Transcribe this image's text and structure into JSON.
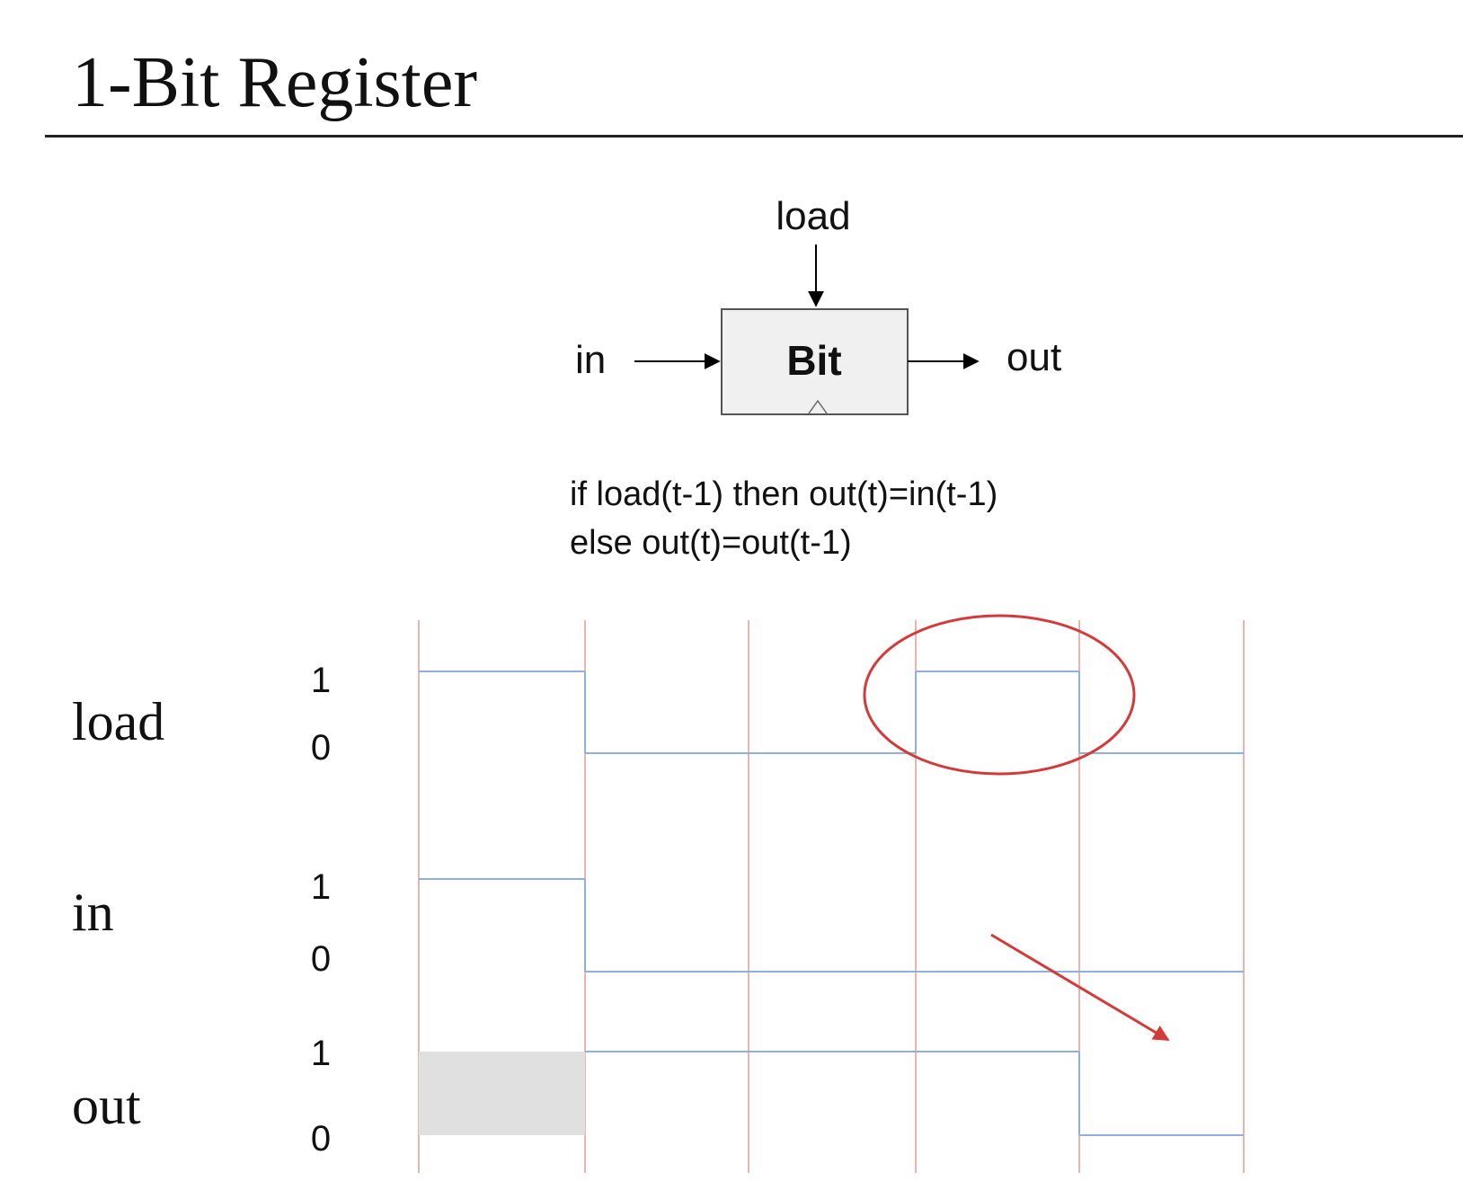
{
  "title": "1-Bit Register",
  "chip": {
    "name": "Bit",
    "input_label": "in",
    "output_label": "out",
    "control_label": "load"
  },
  "spec": {
    "line1": "if load(t-1) then out(t)=in(t-1)",
    "line2": "else out(t)=out(t-1)"
  },
  "timing": {
    "signals": [
      {
        "name": "load",
        "high_label": "1",
        "low_label": "0",
        "values": [
          1,
          0,
          0,
          1,
          0
        ]
      },
      {
        "name": "in",
        "high_label": "1",
        "low_label": "0",
        "values": [
          1,
          0,
          0,
          0,
          0
        ]
      },
      {
        "name": "out",
        "high_label": "1",
        "low_label": "0",
        "values": [
          null,
          1,
          1,
          1,
          0
        ]
      }
    ],
    "cycles": 5
  },
  "colors": {
    "waveform": "#8fb0df",
    "cycle_divider": "#e69a9a",
    "annotation": "#d43a3a",
    "unknown_fill": "#e0e0e0",
    "chip_fill": "#f0f0f0"
  }
}
